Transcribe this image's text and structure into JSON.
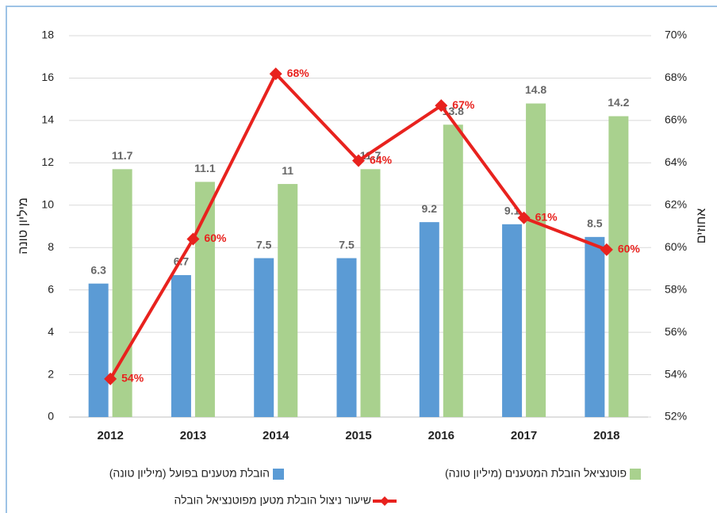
{
  "chart_data": {
    "type": "bar",
    "categories": [
      "2012",
      "2013",
      "2014",
      "2015",
      "2016",
      "2017",
      "2018"
    ],
    "y_label": "מיליון טונה",
    "y2_label": "אחוזים",
    "ylim": [
      0,
      18
    ],
    "yticks": [
      0,
      2,
      4,
      6,
      8,
      10,
      12,
      14,
      16,
      18
    ],
    "y2lim": [
      52,
      70
    ],
    "y2ticks": [
      {
        "value": 52,
        "label": "52%"
      },
      {
        "value": 54,
        "label": "54%"
      },
      {
        "value": 56,
        "label": "56%"
      },
      {
        "value": 58,
        "label": "58%"
      },
      {
        "value": 60,
        "label": "60%"
      },
      {
        "value": 62,
        "label": "62%"
      },
      {
        "value": 64,
        "label": "64%"
      },
      {
        "value": 66,
        "label": "66%"
      },
      {
        "value": 68,
        "label": "68%"
      },
      {
        "value": 70,
        "label": "70%"
      }
    ],
    "grid": true,
    "legend": "bottom",
    "series": [
      {
        "name": "הובלת מטענים בפועל (מיליון טונה)",
        "type": "bar",
        "color": "#5b9bd5",
        "values": [
          6.3,
          6.7,
          7.5,
          7.5,
          9.2,
          9.1,
          8.5
        ]
      },
      {
        "name": "פוטנציאל הובלת המטענים (מיליון טונה)",
        "type": "bar",
        "color": "#a9d18e",
        "values": [
          11.7,
          11.1,
          11,
          11.7,
          13.8,
          14.8,
          14.2
        ]
      },
      {
        "name": "שיעור ניצול הובלת מטען מפוטנציאל הובלה",
        "type": "line",
        "axis": "y2",
        "color": "#e8221e",
        "values": [
          53.8,
          60.4,
          68.2,
          64.1,
          66.7,
          61.4,
          59.9
        ],
        "value_labels": [
          "54%",
          "60%",
          "68%",
          "64%",
          "67%",
          "61%",
          "60%"
        ]
      }
    ]
  }
}
